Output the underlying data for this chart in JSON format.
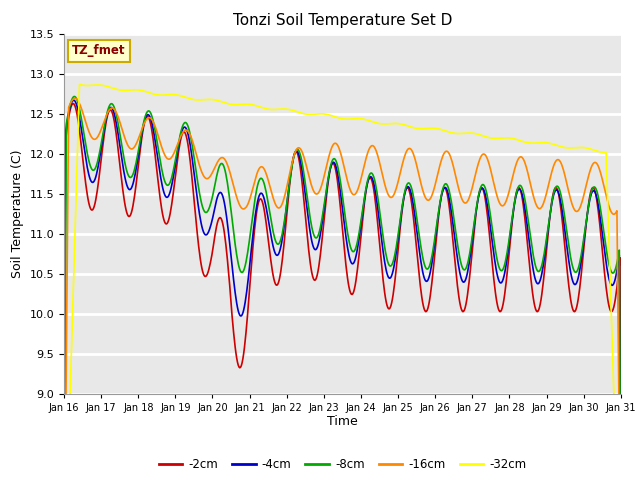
{
  "title": "Tonzi Soil Temperature Set D",
  "xlabel": "Time",
  "ylabel": "Soil Temperature (C)",
  "ylim": [
    9.0,
    13.5
  ],
  "yticks": [
    9.0,
    9.5,
    10.0,
    10.5,
    11.0,
    11.5,
    12.0,
    12.5,
    13.0,
    13.5
  ],
  "xtick_labels": [
    "Jan 16",
    "Jan 17",
    "Jan 18",
    "Jan 19",
    "Jan 20",
    "Jan 21",
    "Jan 22",
    "Jan 23",
    "Jan 24",
    "Jan 25",
    "Jan 26",
    "Jan 27",
    "Jan 28",
    "Jan 29",
    "Jan 30",
    "Jan 31"
  ],
  "series_labels": [
    "-2cm",
    "-4cm",
    "-8cm",
    "-16cm",
    "-32cm"
  ],
  "series_colors": [
    "#cc0000",
    "#0000cc",
    "#00aa00",
    "#ff8800",
    "#ffff00"
  ],
  "plot_bg_color": "#e8e8e8",
  "figsize": [
    6.4,
    4.8
  ],
  "dpi": 100
}
